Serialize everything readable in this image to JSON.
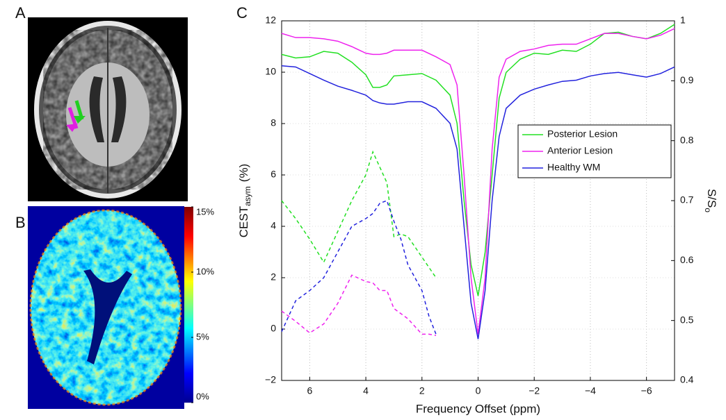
{
  "panels": {
    "a": "A",
    "b": "B",
    "c": "C"
  },
  "colorbar": {
    "lim": [
      0,
      15
    ],
    "ticks": [
      {
        "value": 15,
        "label": "15%"
      },
      {
        "value": 10,
        "label": "10%"
      },
      {
        "value": 5,
        "label": "5%"
      },
      {
        "value": 0,
        "label": "0%"
      }
    ]
  },
  "chart_data": {
    "type": "line",
    "xlabel": "Frequency Offset (ppm)",
    "ylabel": "CEST",
    "ylabel_sub": "asym",
    "ylabel_suffix": "(%)",
    "y2label": "S/S",
    "y2label_sub": "o",
    "xlim": [
      7,
      -7
    ],
    "xticks": [
      6,
      4,
      2,
      0,
      {
        "value": -2,
        "label": "−2"
      },
      {
        "value": -4,
        "label": "−4"
      },
      {
        "value": -6,
        "label": "−6"
      }
    ],
    "ylim": [
      -2,
      12
    ],
    "yticks": [
      {
        "value": -2,
        "label": "−2"
      },
      0,
      2,
      4,
      6,
      8,
      10,
      12
    ],
    "y2lim": [
      0.4,
      1
    ],
    "y2ticks": [
      0.4,
      0.5,
      0.6,
      0.7,
      0.8,
      0.9,
      1
    ],
    "grid": true,
    "legend_loc": "right",
    "series": [
      {
        "name": "Posterior Lesion",
        "color": "#22e022",
        "axis": "y2",
        "style": "solid",
        "x": [
          7,
          6.5,
          6,
          5.5,
          5,
          4.5,
          4,
          3.75,
          3.5,
          3.25,
          3,
          2.5,
          2,
          1.5,
          1,
          0.75,
          0.5,
          0.25,
          0,
          -0.25,
          -0.5,
          -0.75,
          -1,
          -1.5,
          -2,
          -2.5,
          -3,
          -3.5,
          -4,
          -4.5,
          -5,
          -5.5,
          -6,
          -6.5,
          -7
        ],
        "values": [
          0.944,
          0.938,
          0.94,
          0.949,
          0.946,
          0.931,
          0.91,
          0.889,
          0.889,
          0.893,
          0.908,
          0.91,
          0.912,
          0.901,
          0.876,
          0.829,
          0.7,
          0.593,
          0.541,
          0.614,
          0.743,
          0.871,
          0.914,
          0.936,
          0.946,
          0.944,
          0.951,
          0.949,
          0.961,
          0.979,
          0.981,
          0.974,
          0.97,
          0.979,
          0.994
        ]
      },
      {
        "name": "Anterior Lesion",
        "color": "#ee22ee",
        "axis": "y2",
        "style": "solid",
        "x": [
          7,
          6.5,
          6,
          5.5,
          5,
          4.5,
          4,
          3.75,
          3.5,
          3.25,
          3,
          2.5,
          2,
          1.5,
          1,
          0.75,
          0.5,
          0.25,
          0,
          -0.25,
          -0.5,
          -0.75,
          -1,
          -1.5,
          -2,
          -2.5,
          -3,
          -3.5,
          -4,
          -4.5,
          -5,
          -5.5,
          -6,
          -6.5,
          -7
        ],
        "values": [
          0.979,
          0.972,
          0.972,
          0.97,
          0.966,
          0.957,
          0.946,
          0.944,
          0.944,
          0.946,
          0.951,
          0.951,
          0.951,
          0.94,
          0.927,
          0.893,
          0.743,
          0.571,
          0.477,
          0.571,
          0.786,
          0.906,
          0.936,
          0.949,
          0.953,
          0.959,
          0.961,
          0.961,
          0.97,
          0.979,
          0.979,
          0.974,
          0.97,
          0.976,
          0.987
        ]
      },
      {
        "name": "Healthy WM",
        "color": "#2222dd",
        "axis": "y2",
        "style": "solid",
        "x": [
          7,
          6.5,
          6,
          5.5,
          5,
          4.5,
          4,
          3.75,
          3.5,
          3.25,
          3,
          2.5,
          2,
          1.5,
          1,
          0.75,
          0.5,
          0.25,
          0,
          -0.25,
          -0.5,
          -0.75,
          -1,
          -1.5,
          -2,
          -2.5,
          -3,
          -3.5,
          -4,
          -4.5,
          -5,
          -5.5,
          -6,
          -6.5,
          -7
        ],
        "values": [
          0.925,
          0.923,
          0.912,
          0.901,
          0.891,
          0.884,
          0.876,
          0.867,
          0.863,
          0.861,
          0.861,
          0.865,
          0.865,
          0.854,
          0.829,
          0.786,
          0.657,
          0.529,
          0.469,
          0.55,
          0.7,
          0.807,
          0.854,
          0.876,
          0.886,
          0.893,
          0.899,
          0.901,
          0.908,
          0.912,
          0.914,
          0.91,
          0.906,
          0.912,
          0.923
        ]
      },
      {
        "color": "#22e022",
        "style": "dashed",
        "x": [
          7,
          6.5,
          6,
          5.5,
          5,
          4.5,
          4,
          3.75,
          3.5,
          3.25,
          3,
          2.75,
          2.5,
          2,
          1.5
        ],
        "values": [
          5.0,
          4.3,
          3.5,
          2.6,
          3.8,
          5.0,
          6.0,
          6.9,
          6.3,
          5.7,
          3.6,
          3.7,
          3.6,
          2.8,
          2.0
        ]
      },
      {
        "color": "#2222dd",
        "style": "dashed",
        "x": [
          7,
          6.5,
          6,
          5.5,
          5,
          4.5,
          4,
          3.75,
          3.5,
          3.25,
          3,
          2.75,
          2.5,
          2,
          1.75,
          1.5
        ],
        "values": [
          -0.1,
          1.1,
          1.5,
          2.0,
          3.0,
          4.0,
          4.3,
          4.5,
          4.9,
          5.0,
          4.2,
          3.5,
          2.5,
          1.5,
          0.5,
          -0.2
        ]
      },
      {
        "color": "#ee22ee",
        "style": "dashed",
        "x": [
          7,
          6.5,
          6,
          5.5,
          5,
          4.5,
          4,
          3.75,
          3.5,
          3.25,
          3,
          2.5,
          2,
          1.75,
          1.5
        ],
        "values": [
          0.7,
          0.3,
          -0.15,
          0.2,
          1.0,
          2.1,
          1.85,
          1.8,
          1.5,
          1.5,
          0.8,
          0.4,
          -0.2,
          -0.2,
          -0.25
        ]
      }
    ]
  }
}
